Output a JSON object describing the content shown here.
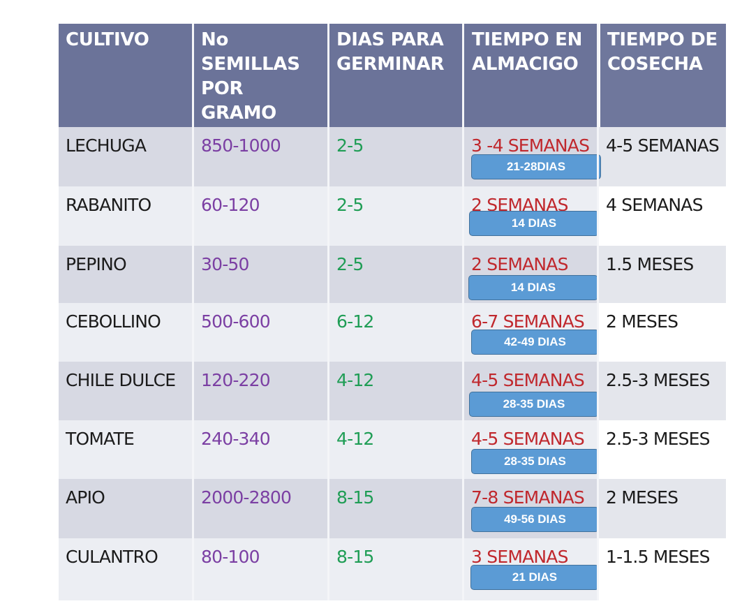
{
  "table": {
    "headers": {
      "crop": "CULTIVO",
      "seeds": "No\nSEMILLAS\nPOR\nGRAMO",
      "germination": "DIAS PARA\nGERMINAR",
      "seedbed": "TIEMPO EN\nALMACIGO",
      "harvest": "TIEMPO DE\nCOSECHA"
    },
    "rows": [
      {
        "crop": "LECHUGA",
        "seeds": "850-1000",
        "germination": "2-5",
        "seedbed": "3 -4 SEMANAS",
        "days": "21-28DIAS",
        "harvest": "4-5 SEMANAS"
      },
      {
        "crop": "RABANITO",
        "seeds": "60-120",
        "germination": "2-5",
        "seedbed": "2 SEMANAS",
        "days": "14 DIAS",
        "harvest": "4 SEMANAS"
      },
      {
        "crop": "PEPINO",
        "seeds": "30-50",
        "germination": "2-5",
        "seedbed": "2 SEMANAS",
        "days": "14 DIAS",
        "harvest": "1.5 MESES"
      },
      {
        "crop": "CEBOLLINO",
        "seeds": "500-600",
        "germination": "6-12",
        "seedbed": "6-7 SEMANAS",
        "days": "42-49 DIAS",
        "harvest": "2 MESES"
      },
      {
        "crop": "CHILE DULCE",
        "seeds": "120-220",
        "germination": "4-12",
        "seedbed": "4-5 SEMANAS",
        "days": "28-35 DIAS",
        "harvest": "2.5-3 MESES"
      },
      {
        "crop": "TOMATE",
        "seeds": "240-340",
        "germination": "4-12",
        "seedbed": "4-5 SEMANAS",
        "days": "28-35 DIAS",
        "harvest": "2.5-3 MESES"
      },
      {
        "crop": "APIO",
        "seeds": "2000-2800",
        "germination": "8-15",
        "seedbed": "7-8 SEMANAS",
        "days": "49-56 DIAS",
        "harvest": "2 MESES"
      },
      {
        "crop": "CULANTRO",
        "seeds": "80-100",
        "germination": "8-15",
        "seedbed": "3 SEMANAS",
        "days": "21 DIAS",
        "harvest": "1-1.5 MESES"
      }
    ]
  },
  "colors": {
    "header": "#6b7399",
    "row_dark": "#d7d9e3",
    "row_light": "#eceef3",
    "seeds_text": "#7b3fa3",
    "germination_text": "#1f9d55",
    "seedbed_text": "#c0282d",
    "badge": "#5b9bd5"
  }
}
